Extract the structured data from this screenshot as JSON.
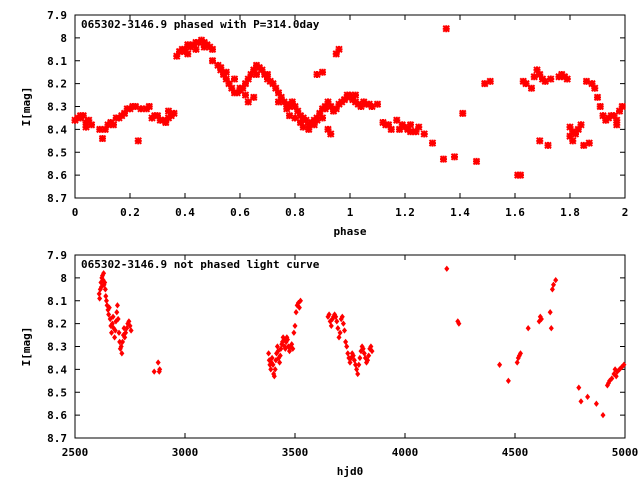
{
  "chart_data": [
    {
      "type": "scatter",
      "title": "065302-3146.9 phased with P=314.0day",
      "xlabel": "phase",
      "ylabel": "I[mag]",
      "xlim": [
        0,
        2
      ],
      "ylim": [
        8.7,
        7.9
      ],
      "y_inverted": true,
      "xticks": [
        "0",
        "0.2",
        "0.4",
        "0.6",
        "0.8",
        "1",
        "1.2",
        "1.4",
        "1.6",
        "1.8",
        "2"
      ],
      "yticks": [
        "7.9",
        "8",
        "8.1",
        "8.2",
        "8.3",
        "8.4",
        "8.5",
        "8.6",
        "8.7"
      ],
      "marker_color": "#ff0000",
      "series": [
        {
          "x": [
            0.0,
            0.01,
            0.02,
            0.03,
            0.04,
            0.05,
            0.06,
            0.09,
            0.1,
            0.12,
            0.13,
            0.15,
            0.17,
            0.18,
            0.19,
            0.2,
            0.21,
            0.22,
            0.24,
            0.26,
            0.28,
            0.29,
            0.3,
            0.31,
            0.32,
            0.33,
            0.34,
            0.35,
            0.36,
            0.37,
            0.38,
            0.39,
            0.4,
            0.41,
            0.42,
            0.43,
            0.44,
            0.45,
            0.46,
            0.47,
            0.48,
            0.49,
            0.5,
            0.52,
            0.53,
            0.54,
            0.55,
            0.56,
            0.57,
            0.58,
            0.59,
            0.6,
            0.61,
            0.62,
            0.63,
            0.64,
            0.65,
            0.66,
            0.67,
            0.68,
            0.69,
            0.7,
            0.71,
            0.72,
            0.73,
            0.74,
            0.75,
            0.76,
            0.77,
            0.78,
            0.79,
            0.8,
            0.81,
            0.82,
            0.83,
            0.84,
            0.85,
            0.86,
            0.87,
            0.88,
            0.89,
            0.9,
            0.91,
            0.92,
            0.93,
            0.94,
            0.95,
            0.96,
            0.97,
            0.98,
            0.99,
            1.0,
            1.01,
            1.02,
            1.03,
            1.04,
            1.05,
            1.06,
            1.07,
            1.08,
            1.1,
            1.12,
            1.14,
            1.17,
            1.19,
            1.2,
            1.21,
            1.22,
            1.23,
            1.24,
            1.27,
            1.3,
            1.34,
            1.35,
            1.38,
            1.46,
            1.49,
            1.51,
            1.62,
            1.63,
            1.64,
            1.66,
            1.67,
            1.68,
            1.69,
            1.7,
            1.71,
            1.73,
            1.76,
            1.77,
            1.78,
            1.79,
            1.8,
            1.81,
            1.82,
            1.83,
            1.84,
            1.86,
            1.88,
            1.89,
            1.9,
            1.91,
            1.92,
            1.93,
            1.94,
            1.95,
            1.96,
            1.97,
            1.98,
            1.99,
            0.02,
            0.04,
            0.11,
            0.14,
            0.16,
            0.23,
            0.27,
            0.34,
            0.4,
            0.41,
            0.44,
            0.47,
            0.5,
            0.53,
            0.55,
            0.58,
            0.6,
            0.62,
            0.66,
            0.7,
            0.74,
            0.78,
            0.8,
            0.82,
            0.83,
            0.85,
            0.87,
            0.88,
            0.9,
            0.91,
            0.92,
            0.93,
            1.13,
            1.15,
            1.18,
            1.22,
            1.25,
            1.41,
            1.61,
            1.69,
            1.72,
            1.8,
            1.81,
            1.85,
            1.87,
            1.97,
            0.88,
            0.9,
            0.95,
            0.96,
            0.99,
            1.02,
            0.63,
            0.65,
            0.77,
            0.79
          ],
          "y": [
            8.36,
            8.35,
            8.35,
            8.34,
            8.37,
            8.36,
            8.38,
            8.4,
            8.44,
            8.38,
            8.37,
            8.35,
            8.34,
            8.33,
            8.31,
            8.31,
            8.3,
            8.3,
            8.31,
            8.31,
            8.35,
            8.34,
            8.34,
            8.36,
            8.36,
            8.37,
            8.35,
            8.34,
            8.33,
            8.08,
            8.06,
            8.05,
            8.05,
            8.03,
            8.04,
            8.03,
            8.02,
            8.02,
            8.01,
            8.02,
            8.03,
            8.04,
            8.1,
            8.12,
            8.14,
            8.16,
            8.18,
            8.2,
            8.22,
            8.24,
            8.24,
            8.23,
            8.22,
            8.2,
            8.18,
            8.16,
            8.14,
            8.12,
            8.13,
            8.14,
            8.16,
            8.18,
            8.19,
            8.2,
            8.22,
            8.24,
            8.26,
            8.28,
            8.29,
            8.3,
            8.28,
            8.3,
            8.32,
            8.34,
            8.35,
            8.36,
            8.38,
            8.37,
            8.36,
            8.35,
            8.33,
            8.31,
            8.3,
            8.28,
            8.3,
            8.32,
            8.31,
            8.29,
            8.28,
            8.27,
            8.26,
            8.25,
            8.27,
            8.28,
            8.29,
            8.3,
            8.28,
            8.29,
            8.29,
            8.3,
            8.29,
            8.37,
            8.38,
            8.36,
            8.38,
            8.39,
            8.4,
            8.41,
            8.41,
            8.41,
            8.42,
            8.46,
            8.53,
            7.96,
            8.52,
            8.54,
            8.2,
            8.19,
            8.6,
            8.19,
            8.2,
            8.22,
            8.17,
            8.14,
            8.16,
            8.18,
            8.19,
            8.18,
            8.17,
            8.16,
            8.17,
            8.18,
            8.39,
            8.41,
            8.42,
            8.4,
            8.38,
            8.19,
            8.2,
            8.22,
            8.26,
            8.3,
            8.34,
            8.36,
            8.35,
            8.34,
            8.34,
            8.36,
            8.32,
            8.3,
            8.34,
            8.39,
            8.4,
            8.38,
            8.35,
            8.45,
            8.3,
            8.32,
            8.06,
            8.07,
            8.05,
            8.04,
            8.05,
            8.13,
            8.15,
            8.18,
            8.22,
            8.25,
            8.16,
            8.16,
            8.28,
            8.34,
            8.35,
            8.37,
            8.39,
            8.4,
            8.38,
            8.36,
            8.35,
            8.31,
            8.4,
            8.42,
            8.38,
            8.4,
            8.4,
            8.38,
            8.39,
            8.33,
            8.6,
            8.45,
            8.47,
            8.43,
            8.45,
            8.47,
            8.46,
            8.38,
            8.16,
            8.15,
            8.07,
            8.05,
            8.25,
            8.25,
            8.28,
            8.26,
            8.31,
            8.29
          ]
        }
      ]
    },
    {
      "type": "scatter",
      "title": "065302-3146.9 not phased light curve",
      "xlabel": "hjd0",
      "ylabel": "I[mag]",
      "xlim": [
        2500,
        5000
      ],
      "ylim": [
        8.7,
        7.9
      ],
      "y_inverted": true,
      "xticks": [
        "2500",
        "3000",
        "3500",
        "4000",
        "4500",
        "5000"
      ],
      "yticks": [
        "7.9",
        "8",
        "8.1",
        "8.2",
        "8.3",
        "8.4",
        "8.5",
        "8.6",
        "8.7"
      ],
      "marker_color": "#ff0000",
      "series": [
        {
          "x": [
            2610,
            2612,
            2615,
            2618,
            2620,
            2622,
            2625,
            2628,
            2630,
            2632,
            2635,
            2638,
            2640,
            2643,
            2646,
            2650,
            2653,
            2656,
            2660,
            2663,
            2666,
            2670,
            2673,
            2676,
            2680,
            2683,
            2686,
            2690,
            2693,
            2696,
            2700,
            2703,
            2706,
            2710,
            2713,
            2716,
            2720,
            2723,
            2726,
            2730,
            2735,
            2740,
            2745,
            2750,
            2755,
            2860,
            2878,
            2885,
            2883,
            3380,
            3383,
            3386,
            3390,
            3393,
            3396,
            3400,
            3403,
            3406,
            3410,
            3413,
            3416,
            3420,
            3423,
            3426,
            3430,
            3433,
            3436,
            3440,
            3443,
            3446,
            3450,
            3453,
            3456,
            3460,
            3463,
            3466,
            3470,
            3475,
            3480,
            3485,
            3490,
            3495,
            3500,
            3505,
            3510,
            3515,
            3520,
            3525,
            3650,
            3655,
            3660,
            3665,
            3670,
            3675,
            3680,
            3685,
            3690,
            3695,
            3700,
            3705,
            3710,
            3715,
            3720,
            3725,
            3730,
            3735,
            3740,
            3745,
            3750,
            3755,
            3760,
            3765,
            3770,
            3775,
            3780,
            3785,
            3790,
            3795,
            3800,
            3805,
            3810,
            3815,
            3820,
            3825,
            3830,
            3835,
            3840,
            3845,
            3850,
            4190,
            4240,
            4245,
            4430,
            4470,
            4510,
            4515,
            4520,
            4525,
            4560,
            4610,
            4615,
            4620,
            4660,
            4665,
            4670,
            4675,
            4685,
            4790,
            4800,
            4830,
            4870,
            4900,
            4920,
            4925,
            4930,
            4940,
            4950,
            4955,
            4960,
            4965,
            4975,
            4985,
            4995
          ],
          "y": [
            8.07,
            8.09,
            8.05,
            8.02,
            8.04,
            8.0,
            7.99,
            8.01,
            7.98,
            8.03,
            8.02,
            8.05,
            8.08,
            8.1,
            8.12,
            8.14,
            8.16,
            8.13,
            8.18,
            8.21,
            8.24,
            8.2,
            8.17,
            8.22,
            8.26,
            8.23,
            8.19,
            8.15,
            8.12,
            8.18,
            8.24,
            8.28,
            8.31,
            8.3,
            8.33,
            8.28,
            8.25,
            8.22,
            8.26,
            8.24,
            8.22,
            8.2,
            8.19,
            8.21,
            8.23,
            8.41,
            8.37,
            8.4,
            8.41,
            8.33,
            8.36,
            8.38,
            8.4,
            8.37,
            8.35,
            8.38,
            8.42,
            8.43,
            8.4,
            8.36,
            8.33,
            8.3,
            8.32,
            8.35,
            8.37,
            8.34,
            8.31,
            8.29,
            8.28,
            8.26,
            8.27,
            8.3,
            8.31,
            8.28,
            8.26,
            8.27,
            8.3,
            8.32,
            8.3,
            8.29,
            8.31,
            8.24,
            8.21,
            8.15,
            8.12,
            8.11,
            8.13,
            8.1,
            8.17,
            8.16,
            8.19,
            8.21,
            8.18,
            8.17,
            8.16,
            8.17,
            8.19,
            8.22,
            8.26,
            8.24,
            8.18,
            8.17,
            8.2,
            8.23,
            8.28,
            8.3,
            8.33,
            8.35,
            8.37,
            8.35,
            8.33,
            8.34,
            8.36,
            8.38,
            8.4,
            8.42,
            8.38,
            8.35,
            8.32,
            8.3,
            8.31,
            8.33,
            8.35,
            8.37,
            8.36,
            8.34,
            8.31,
            8.3,
            8.32,
            7.96,
            8.19,
            8.2,
            8.38,
            8.45,
            8.37,
            8.35,
            8.34,
            8.33,
            8.22,
            8.19,
            8.17,
            8.18,
            8.15,
            8.22,
            8.05,
            8.03,
            8.01,
            8.48,
            8.54,
            8.52,
            8.55,
            8.6,
            8.47,
            8.46,
            8.45,
            8.44,
            8.42,
            8.4,
            8.43,
            8.41,
            8.4,
            8.39,
            8.38
          ]
        }
      ]
    }
  ]
}
